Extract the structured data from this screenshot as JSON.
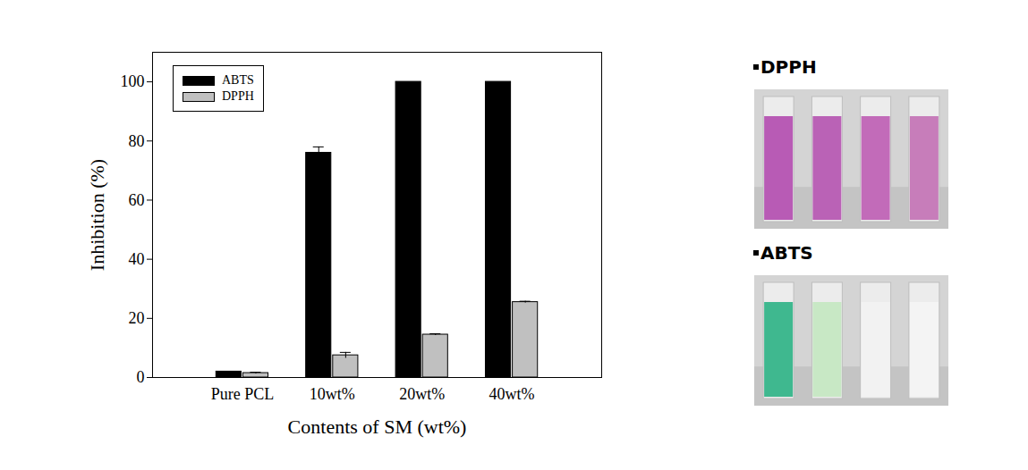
{
  "chart_data": {
    "type": "bar",
    "categories": [
      "Pure PCL",
      "10wt%",
      "20wt%",
      "40wt%"
    ],
    "series": [
      {
        "name": "ABTS",
        "color": "#000000",
        "values": [
          2,
          76,
          100,
          100
        ],
        "errors": [
          0,
          2,
          0,
          0
        ]
      },
      {
        "name": "DPPH",
        "color": "#c0c0c0",
        "values": [
          1.5,
          7.5,
          14.5,
          25.5
        ],
        "errors": [
          0.3,
          1,
          0.3,
          0.3
        ]
      }
    ],
    "x_label": "Contents of SM (wt%)",
    "y_label": "Inhibition (%)",
    "ylim": [
      0,
      110
    ],
    "yticks": [
      0,
      20,
      40,
      60,
      80,
      100
    ],
    "grid": false,
    "legend": "top-left"
  },
  "photos": [
    {
      "label": "DPPH",
      "colors": [
        "#b85bb5",
        "#ba62b6",
        "#c26bb9",
        "#c77dba"
      ]
    },
    {
      "label": "ABTS",
      "colors": [
        "#3fb88f",
        "#c8e8c5",
        "#f2f2f2",
        "#f4f4f4"
      ]
    }
  ]
}
